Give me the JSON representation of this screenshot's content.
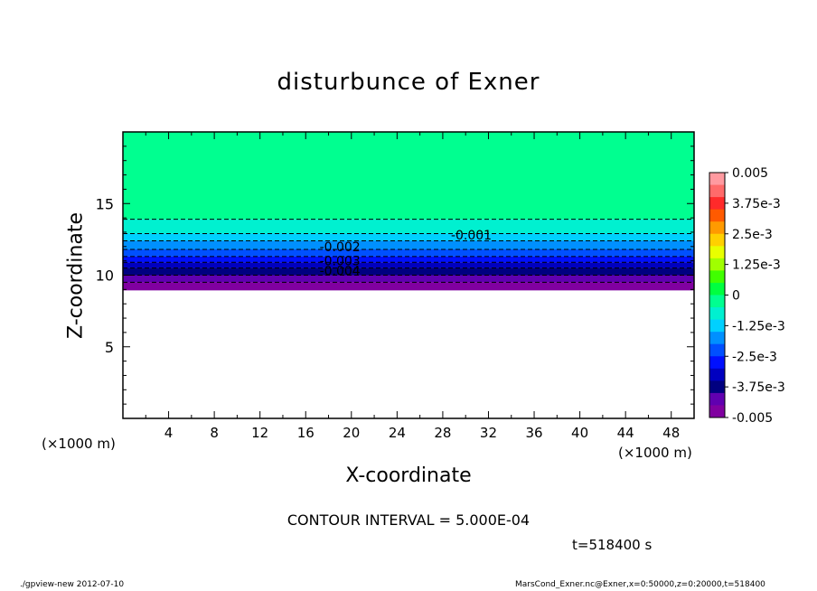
{
  "chart_data": {
    "type": "filled-contour",
    "title": "disturbunce of Exner",
    "xlabel": "X-coordinate",
    "ylabel": "Z-coordinate",
    "x_unit_label": "(×1000 m)",
    "x_ticks": [
      "4",
      "8",
      "12",
      "16",
      "20",
      "24",
      "28",
      "32",
      "36",
      "40",
      "44",
      "48"
    ],
    "y_ticks": [
      "5",
      "10",
      "15"
    ],
    "xlim": [
      0,
      50
    ],
    "ylim": [
      0,
      20
    ],
    "contour_interval_text": "CONTOUR INTERVAL = 5.000E-04",
    "contour_labels": [
      {
        "text": "-0.001",
        "x": 30.5,
        "z": 12.8
      },
      {
        "text": "-0.002",
        "x": 19.0,
        "z": 12.0
      },
      {
        "text": "-0.003",
        "x": 19.0,
        "z": 11.0
      },
      {
        "text": "-0.004",
        "x": 19.0,
        "z": 10.3
      }
    ],
    "contour_levels_z": [
      {
        "value": -0.0005,
        "z": 13.9
      },
      {
        "value": -0.001,
        "z": 12.9
      },
      {
        "value": -0.0015,
        "z": 12.4
      },
      {
        "value": -0.002,
        "z": 11.8
      },
      {
        "value": -0.0025,
        "z": 11.3
      },
      {
        "value": -0.003,
        "z": 10.9
      },
      {
        "value": -0.0035,
        "z": 10.5
      },
      {
        "value": -0.004,
        "z": 10.0
      },
      {
        "value": -0.0045,
        "z": 9.5
      }
    ],
    "data_bottom_z": 9.0,
    "colorbar": {
      "tick_labels": [
        "0.005",
        "3.75e-3",
        "2.5e-3",
        "1.25e-3",
        "0",
        "-1.25e-3",
        "-2.5e-3",
        "-3.75e-3",
        "-0.005"
      ],
      "colors": [
        "#ff9aa0",
        "#ff6a6a",
        "#ff2a2a",
        "#ff5a00",
        "#ff9a00",
        "#ffd000",
        "#e8ff00",
        "#a0ff00",
        "#40ff00",
        "#00ff40",
        "#00ff90",
        "#00f0d0",
        "#00d0ff",
        "#0090ff",
        "#0050ff",
        "#0010ff",
        "#0000c0",
        "#000080",
        "#6000b0",
        "#8000a0"
      ]
    }
  },
  "annotations": {
    "time": "t=518400 s",
    "footer_left": "./gpview-new   2012-07-10",
    "footer_right": "MarsCond_Exner.nc@Exner,x=0:50000,z=0:20000,t=518400"
  }
}
